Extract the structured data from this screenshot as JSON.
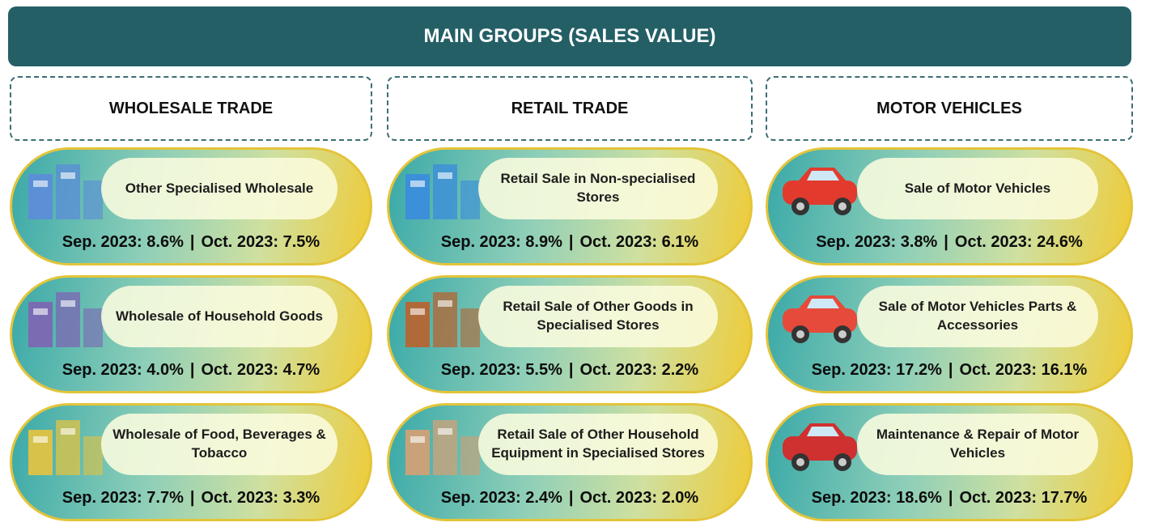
{
  "header": {
    "title": "MAIN GROUPS (SALES VALUE)"
  },
  "columns": [
    {
      "title": "WHOLESALE TRADE",
      "cards": [
        {
          "name": "Other Specialised Wholesale",
          "sep": "Sep. 2023: 8.6%",
          "oct": "Oct. 2023: 7.5%"
        },
        {
          "name": "Wholesale of Household Goods",
          "sep": "Sep. 2023: 4.0%",
          "oct": "Oct. 2023: 4.7%"
        },
        {
          "name": "Wholesale of Food, Beverages & Tobacco",
          "sep": "Sep. 2023: 7.7%",
          "oct": "Oct. 2023: 3.3%"
        }
      ]
    },
    {
      "title": "RETAIL TRADE",
      "cards": [
        {
          "name": "Retail Sale in Non-specialised Stores",
          "sep": "Sep. 2023: 8.9%",
          "oct": "Oct. 2023: 6.1%"
        },
        {
          "name": "Retail Sale of Other Goods in Specialised Stores",
          "sep": "Sep. 2023: 5.5%",
          "oct": "Oct. 2023: 2.2%"
        },
        {
          "name": "Retail Sale of Other Household Equipment in Specialised Stores",
          "sep": "Sep. 2023: 2.4%",
          "oct": "Oct. 2023: 2.0%"
        }
      ]
    },
    {
      "title": "MOTOR VEHICLES",
      "cards": [
        {
          "name": "Sale of Motor Vehicles",
          "sep": "Sep. 2023: 3.8%",
          "oct": "Oct. 2023: 24.6%"
        },
        {
          "name": "Sale of Motor Vehicles Parts & Accessories",
          "sep": "Sep. 2023: 17.2%",
          "oct": "Oct. 2023: 16.1%"
        },
        {
          "name": "Maintenance & Repair of Motor Vehicles",
          "sep": "Sep. 2023: 18.6%",
          "oct": "Oct. 2023: 17.7%"
        }
      ]
    }
  ]
}
